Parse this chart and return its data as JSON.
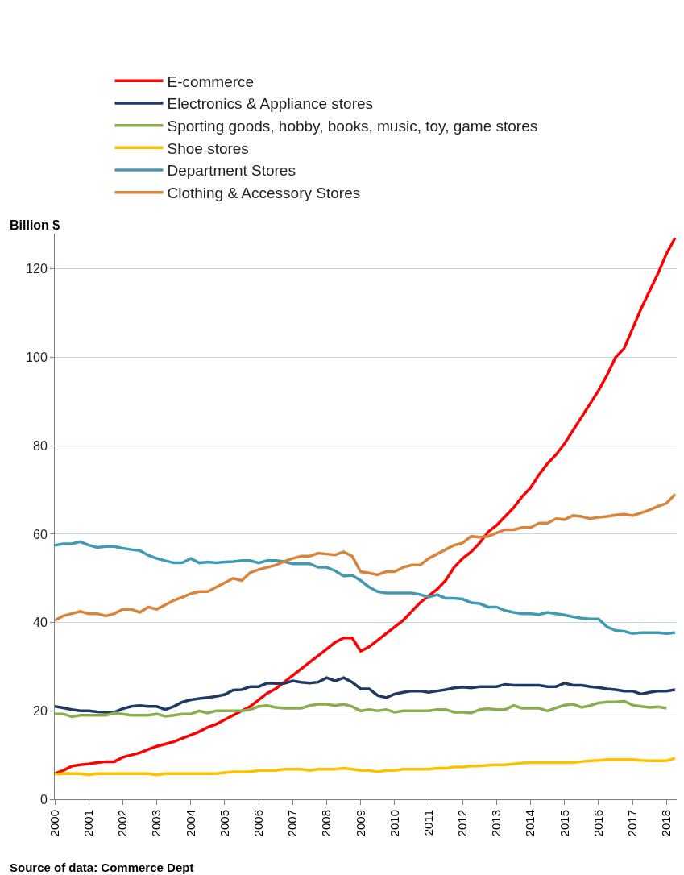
{
  "chart_data": {
    "type": "line",
    "ylabel": "Billion $",
    "annotations": [
      "Source of data: Commerce Dept"
    ],
    "x": [
      2000,
      2000.25,
      2000.5,
      2000.75,
      2001,
      2001.25,
      2001.5,
      2001.75,
      2002,
      2002.25,
      2002.5,
      2002.75,
      2003,
      2003.25,
      2003.5,
      2003.75,
      2004,
      2004.25,
      2004.5,
      2004.75,
      2005,
      2005.25,
      2005.5,
      2005.75,
      2006,
      2006.25,
      2006.5,
      2006.75,
      2007,
      2007.25,
      2007.5,
      2007.75,
      2008,
      2008.25,
      2008.5,
      2008.75,
      2009,
      2009.25,
      2009.5,
      2009.75,
      2010,
      2010.25,
      2010.5,
      2010.75,
      2011,
      2011.25,
      2011.5,
      2011.75,
      2012,
      2012.25,
      2012.5,
      2012.75,
      2013,
      2013.25,
      2013.5,
      2013.75,
      2014,
      2014.25,
      2014.5,
      2014.75,
      2015,
      2015.25,
      2015.5,
      2015.75,
      2016,
      2016.25,
      2016.5,
      2016.75,
      2017,
      2017.25,
      2017.5,
      2017.75,
      2018,
      2018.25
    ],
    "series": [
      {
        "name": "E-commerce",
        "color": "#ff0000",
        "values": [
          5.8,
          6.5,
          7.5,
          7.8,
          8.0,
          8.3,
          8.5,
          8.5,
          9.5,
          10,
          10.5,
          11.3,
          12,
          12.5,
          13,
          13.8,
          14.5,
          15.3,
          16.3,
          17,
          18,
          19,
          20,
          21,
          22.5,
          24,
          25,
          26.5,
          28,
          29.5,
          31,
          32.5,
          34,
          35.5,
          36.5,
          36.5,
          33.5,
          34.5,
          36,
          37.5,
          39,
          40.5,
          42.5,
          44.5,
          46,
          47.5,
          49.5,
          52.5,
          54.5,
          56,
          58,
          60.5,
          62,
          64,
          66,
          68.5,
          70.5,
          73.5,
          76,
          78,
          80.5,
          83.5,
          86.5,
          89.5,
          92.5,
          96,
          100,
          102,
          106.5,
          111,
          115,
          119,
          123.5,
          127
        ]
      },
      {
        "name": "Electronics & Appliance stores",
        "color": "#1f3864",
        "values": [
          21,
          20.7,
          20.3,
          20,
          20,
          19.8,
          19.7,
          19.7,
          20.5,
          21,
          21.2,
          21,
          21,
          20.3,
          21,
          22,
          22.5,
          22.8,
          23,
          23.3,
          23.7,
          24.7,
          24.8,
          25.5,
          25.5,
          26.3,
          26.2,
          26.2,
          26.8,
          26.5,
          26.3,
          26.5,
          27.5,
          26.8,
          27.5,
          26.5,
          25,
          25,
          23.5,
          23,
          23.8,
          24.2,
          24.5,
          24.5,
          24.2,
          24.5,
          24.8,
          25.2,
          25.4,
          25.2,
          25.5,
          25.5,
          25.5,
          26,
          25.8,
          25.8,
          25.8,
          25.8,
          25.5,
          25.5,
          26.3,
          25.8,
          25.8,
          25.5,
          25.3,
          25,
          24.8,
          24.5,
          24.5,
          23.8,
          24.2,
          24.5,
          24.5,
          24.8
        ]
      },
      {
        "name": "Sporting goods, hobby, books, music, toy, game stores",
        "color": "#8cad4d",
        "values": [
          19.3,
          19.3,
          18.7,
          19,
          19,
          19,
          19,
          19.5,
          19.3,
          19,
          19,
          19,
          19.3,
          18.8,
          19,
          19.3,
          19.3,
          20,
          19.5,
          20,
          20,
          20,
          20,
          20.3,
          21,
          21.2,
          20.8,
          20.6,
          20.6,
          20.6,
          21.2,
          21.5,
          21.5,
          21.2,
          21.5,
          21,
          20,
          20.3,
          20,
          20.3,
          19.7,
          20,
          20,
          20,
          20,
          20.3,
          20.3,
          19.7,
          19.7,
          19.5,
          20.3,
          20.5,
          20.3,
          20.3,
          21.2,
          20.6,
          20.6,
          20.6,
          20,
          20.7,
          21.3,
          21.5,
          20.8,
          21.2,
          21.8,
          22,
          22,
          22.2,
          21.3,
          21,
          20.8,
          20.9,
          20.6,
          null
        ]
      },
      {
        "name": "Shoe stores",
        "color": "#ffc000",
        "values": [
          5.7,
          5.8,
          5.8,
          5.8,
          5.5,
          5.8,
          5.8,
          5.8,
          5.8,
          5.8,
          5.8,
          5.8,
          5.5,
          5.8,
          5.8,
          5.8,
          5.8,
          5.8,
          5.8,
          5.8,
          6.0,
          6.2,
          6.2,
          6.2,
          6.5,
          6.5,
          6.5,
          6.8,
          6.8,
          6.8,
          6.5,
          6.8,
          6.8,
          6.8,
          7,
          6.8,
          6.5,
          6.5,
          6.2,
          6.5,
          6.5,
          6.8,
          6.8,
          6.8,
          6.8,
          7,
          7,
          7.3,
          7.3,
          7.5,
          7.5,
          7.7,
          7.8,
          7.8,
          8,
          8.2,
          8.3,
          8.3,
          8.3,
          8.3,
          8.3,
          8.3,
          8.5,
          8.7,
          8.8,
          9,
          9,
          9,
          9,
          8.8,
          8.7,
          8.7,
          8.7,
          9.3
        ]
      },
      {
        "name": "Department Stores",
        "color": "#4299b3",
        "values": [
          57.5,
          57.8,
          57.8,
          58.3,
          57.5,
          57,
          57.2,
          57.2,
          56.8,
          56.5,
          56.3,
          55.2,
          54.5,
          54,
          53.5,
          53.5,
          54.5,
          53.5,
          53.7,
          53.5,
          53.7,
          53.8,
          54,
          54,
          53.5,
          54,
          54,
          53.8,
          53.3,
          53.3,
          53.3,
          52.5,
          52.5,
          51.7,
          50.5,
          50.7,
          49.5,
          48,
          47,
          46.7,
          46.7,
          46.7,
          46.7,
          46.3,
          45.8,
          46.3,
          45.5,
          45.5,
          45.3,
          44.5,
          44.3,
          43.5,
          43.5,
          42.7,
          42.3,
          42,
          42,
          41.8,
          42.3,
          42,
          41.7,
          41.3,
          41,
          40.8,
          40.8,
          39,
          38.2,
          38,
          37.5,
          37.7,
          37.7,
          37.7,
          37.5,
          37.7
        ]
      },
      {
        "name": "Clothing & Accessory Stores",
        "color": "#d9843b",
        "values": [
          40.5,
          41.5,
          42,
          42.5,
          42,
          42,
          41.5,
          42,
          43,
          43,
          42.3,
          43.5,
          43,
          44,
          45,
          45.7,
          46.5,
          47,
          47,
          48,
          49,
          50,
          49.5,
          51.3,
          52,
          52.5,
          53,
          53.8,
          54.5,
          55,
          55,
          55.7,
          55.5,
          55.3,
          56,
          55,
          51.5,
          51.2,
          50.8,
          51.5,
          51.5,
          52.5,
          53,
          53,
          54.5,
          55.5,
          56.5,
          57.5,
          58,
          59.5,
          59.3,
          59.5,
          60.3,
          61,
          61,
          61.5,
          61.5,
          62.5,
          62.5,
          63.5,
          63.3,
          64.2,
          64,
          63.5,
          63.8,
          64,
          64.3,
          64.5,
          64.2,
          64.8,
          65.5,
          66.3,
          67,
          69
        ]
      }
    ],
    "xlim": [
      2000,
      2018.3
    ],
    "xticks": [
      2000,
      2001,
      2002,
      2003,
      2004,
      2005,
      2006,
      2007,
      2008,
      2009,
      2010,
      2011,
      2012,
      2013,
      2014,
      2015,
      2016,
      2017,
      2018
    ],
    "ylim": [
      0,
      128
    ],
    "yticks": [
      0,
      20,
      40,
      60,
      80,
      100,
      120
    ],
    "grid": "y",
    "legend": "top",
    "marker": "none",
    "line_style": "solid"
  }
}
